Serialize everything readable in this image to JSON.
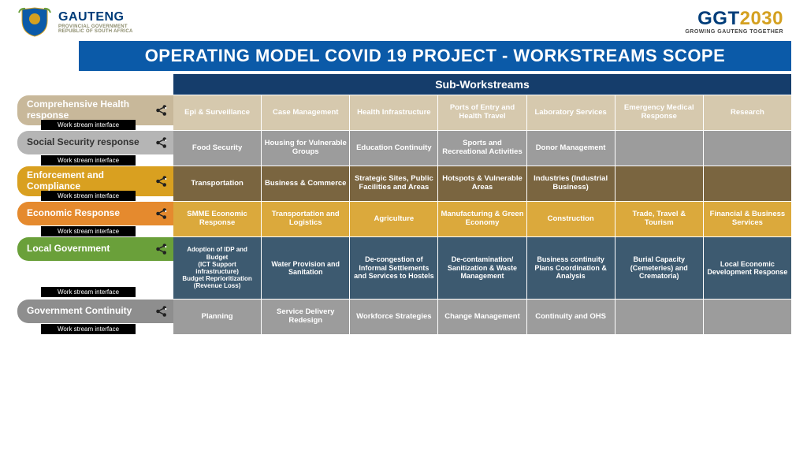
{
  "header": {
    "left_logo": {
      "line1": "GAUTENG",
      "line2": "PROVINCIAL GOVERNMENT",
      "line3": "REPUBLIC OF SOUTH AFRICA"
    },
    "right_logo": {
      "text_a": "GGT",
      "text_b": "2030",
      "tagline": "GROWING GAUTENG TOGETHER"
    }
  },
  "title": "OPERATING MODEL COVID 19 PROJECT - WORKSTREAMS SCOPE",
  "sub_header": "Sub-Workstreams",
  "interface_label": "Work stream interface",
  "colors": {
    "title_bg": "#0b5aa8",
    "sub_header_bg": "#153d6b"
  },
  "rows": [
    {
      "label": "Comprehensive Health response",
      "label_bg": "#c8b89a",
      "label_color": "#ffffff",
      "cell_bg": "#d6c9ae",
      "cells": [
        "Epi & Surveillance",
        "Case Management",
        "Health Infrastructure",
        "Ports of Entry and Health Travel",
        "Laboratory Services",
        "Emergency Medical Response",
        "Research"
      ]
    },
    {
      "label": "Social Security response",
      "label_bg": "#b5b5b5",
      "label_color": "#333333",
      "cell_bg": "#9c9c9c",
      "cells": [
        "Food Security",
        "Housing for Vulnerable Groups",
        "Education Continuity",
        "Sports and Recreational Activities",
        "Donor Management",
        "",
        ""
      ]
    },
    {
      "label": "Enforcement and Compliance",
      "label_bg": "#d9a020",
      "label_color": "#ffffff",
      "cell_bg": "#7a6540",
      "cells": [
        "Transportation",
        "Business & Commerce",
        "Strategic Sites, Public Facilities and Areas",
        "Hotspots & Vulnerable Areas",
        "Industries (Industrial Business)",
        "",
        ""
      ]
    },
    {
      "label": "Economic Response",
      "label_bg": "#e58a2e",
      "label_color": "#ffffff",
      "cell_bg": "#dba93c",
      "cells": [
        "SMME Economic Response",
        "Transportation and Logistics",
        "Agriculture",
        "Manufacturing & Green Economy",
        "Construction",
        "Trade, Travel & Tourism",
        "Financial & Business Services"
      ]
    },
    {
      "label": "Local Government",
      "label_bg": "#6aa03a",
      "label_color": "#ffffff",
      "cell_bg": "#3d5a70",
      "cells": [
        "Adoption of IDP and Budget\n(ICT Support infrastructure)\nBudget Reprioritization (Revenue Loss)",
        "Water Provision and Sanitation",
        "De-congestion of Informal Settlements and Services to Hostels",
        "De-contamination/ Sanitization & Waste Management",
        "Business continuity Plans Coordination & Analysis",
        "Burial Capacity (Cemeteries) and Crematoria)",
        "Local Economic Development Response"
      ]
    },
    {
      "label": "Government Continuity",
      "label_bg": "#8e8e8e",
      "label_color": "#ffffff",
      "cell_bg": "#9c9c9c",
      "cells": [
        "Planning",
        "Service Delivery Redesign",
        "Workforce Strategies",
        "Change Management",
        "Continuity and OHS",
        "",
        ""
      ]
    }
  ]
}
